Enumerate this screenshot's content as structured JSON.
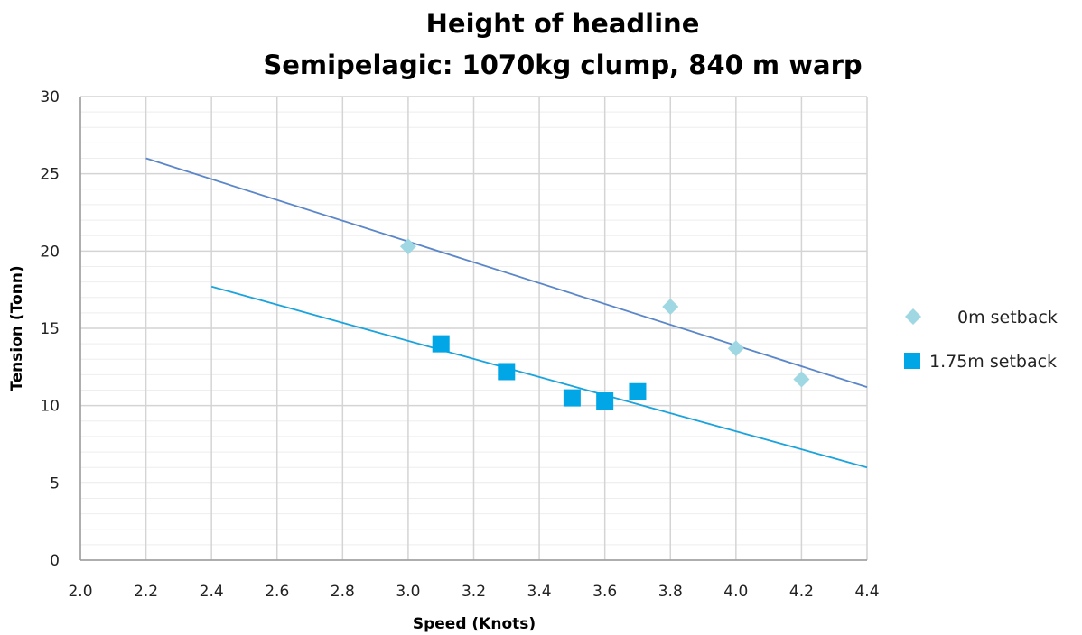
{
  "chart_data": {
    "type": "scatter",
    "title": "Height of headline",
    "subtitle": "Semipelagic:  1070kg clump, 840 m warp",
    "xlabel": "Speed (Knots)",
    "ylabel": "Tension (Tonn)",
    "xlim": [
      2.0,
      4.4
    ],
    "ylim": [
      0,
      30
    ],
    "x_ticks": [
      "2.0",
      "2.2",
      "2.4",
      "2.6",
      "2.8",
      "3.0",
      "3.2",
      "3.4",
      "3.6",
      "3.8",
      "4.0",
      "4.2",
      "4.4"
    ],
    "y_ticks": [
      "0",
      "5",
      "10",
      "15",
      "20",
      "25",
      "30"
    ],
    "grid": true,
    "legend_position": "right",
    "series": [
      {
        "name": "0m setback",
        "marker": "diamond",
        "color": "#9fd8e3",
        "points": [
          [
            3.0,
            20.3
          ],
          [
            3.8,
            16.4
          ],
          [
            4.0,
            13.7
          ],
          [
            4.2,
            11.7
          ]
        ],
        "trendline": {
          "x": [
            2.2,
            4.4
          ],
          "y": [
            26.0,
            11.2
          ],
          "color": "#5b87c9"
        }
      },
      {
        "name": "1.75m setback",
        "marker": "square",
        "color": "#00a6e6",
        "points": [
          [
            3.1,
            14.0
          ],
          [
            3.3,
            12.2
          ],
          [
            3.5,
            10.5
          ],
          [
            3.6,
            10.3
          ],
          [
            3.7,
            10.9
          ]
        ],
        "trendline": {
          "x": [
            2.4,
            4.4
          ],
          "y": [
            17.7,
            6.0
          ],
          "color": "#1aa3dc"
        }
      }
    ]
  }
}
